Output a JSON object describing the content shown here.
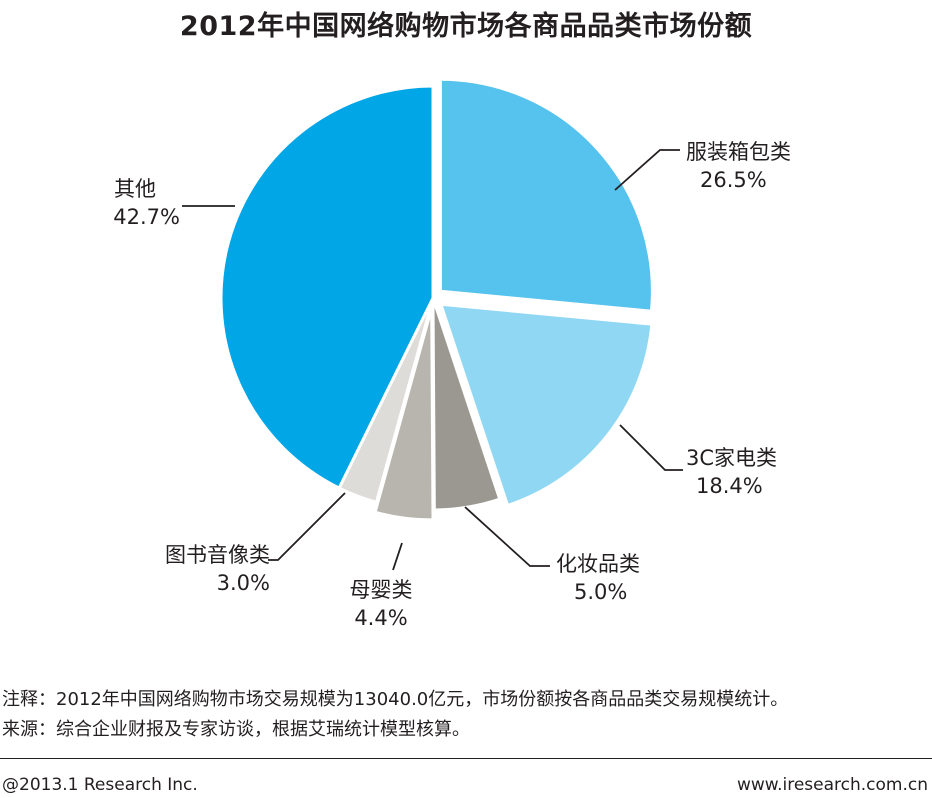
{
  "colors": {
    "fashion": "#55c3ee",
    "electronics": "#8fd7f3",
    "cosmetics": "#9a9890",
    "baby": "#b7b5ad",
    "books": "#dedcd8",
    "other": "#00a6e6",
    "text": "#231f20",
    "leader": "#231f20"
  },
  "chart_data": {
    "type": "pie",
    "title": "2012年中国网络购物市场各商品品类市场份额",
    "slices": [
      {
        "label": "服装箱包类",
        "value": 26.5,
        "value_text": "26.5%",
        "color": "#55c3ee",
        "exploded": true
      },
      {
        "label": "3C家电类",
        "value": 18.4,
        "value_text": "18.4%",
        "color": "#8fd7f3",
        "exploded": true
      },
      {
        "label": "化妆品类",
        "value": 5.0,
        "value_text": "5.0%",
        "color": "#9a9890",
        "exploded": false
      },
      {
        "label": "母婴类",
        "value": 4.4,
        "value_text": "4.4%",
        "color": "#b7b5ad",
        "exploded": true
      },
      {
        "label": "图书音像类",
        "value": 3.0,
        "value_text": "3.0%",
        "color": "#dedcd8",
        "exploded": false
      },
      {
        "label": "其他",
        "value": 42.7,
        "value_text": "42.7%",
        "color": "#00a6e6",
        "exploded": false
      }
    ],
    "unit": "%",
    "start_angle": "12 o'clock",
    "direction": "clockwise"
  },
  "notes": {
    "note": "注释：2012年中国网络购物市场交易规模为13040.0亿元，市场份额按各商品品类交易规模统计。",
    "source": "来源：综合企业财报及专家访谈，根据艾瑞统计模型核算。"
  },
  "footer": {
    "left": "@2013.1 Research Inc.",
    "right": "www.iresearch.com.cn"
  }
}
